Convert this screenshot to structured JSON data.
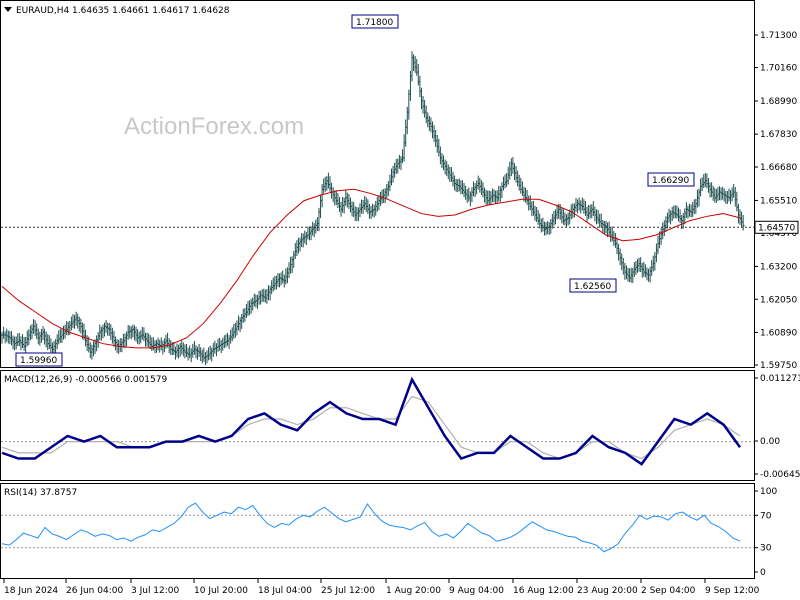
{
  "header": {
    "symbol_info": "EURAUD,H4  1.64635 1.64661 1.64617 1.64628",
    "dropdown_icon": "triangle-down-icon"
  },
  "watermark": "ActionForex.com",
  "chart_data": [
    {
      "type": "ohlc",
      "name": "price",
      "ylim": [
        1.5975,
        1.7198
      ],
      "y_ticks": [
        "1.71300",
        "1.70160",
        "1.68990",
        "1.67830",
        "1.66680",
        "1.65510",
        "1.64370",
        "1.63200",
        "1.62050",
        "1.60890",
        "1.59750"
      ],
      "current_price": "1.64570",
      "annotations": [
        {
          "text": "1.71800",
          "value": 1.718
        },
        {
          "text": "1.66290",
          "value": 1.6629
        },
        {
          "text": "1.62560",
          "value": 1.6256
        },
        {
          "text": "1.59960",
          "value": 1.5996
        }
      ],
      "series_close": [
        1.608,
        1.607,
        1.605,
        1.606,
        1.604,
        1.608,
        1.611,
        1.607,
        1.609,
        1.605,
        1.603,
        1.606,
        1.608,
        1.61,
        1.612,
        1.614,
        1.611,
        1.606,
        1.602,
        1.605,
        1.609,
        1.611,
        1.61,
        1.606,
        1.604,
        1.606,
        1.609,
        1.61,
        1.607,
        1.608,
        1.606,
        1.604,
        1.605,
        1.604,
        1.606,
        1.603,
        1.602,
        1.604,
        1.602,
        1.601,
        1.603,
        1.602,
        1.6,
        1.601,
        1.603,
        1.604,
        1.605,
        1.606,
        1.608,
        1.611,
        1.614,
        1.616,
        1.619,
        1.62,
        1.622,
        1.621,
        1.624,
        1.626,
        1.628,
        1.627,
        1.631,
        1.636,
        1.64,
        1.642,
        1.643,
        1.645,
        1.647,
        1.659,
        1.662,
        1.658,
        1.655,
        1.652,
        1.656,
        1.653,
        1.65,
        1.652,
        1.654,
        1.651,
        1.652,
        1.655,
        1.657,
        1.66,
        1.665,
        1.668,
        1.67,
        1.686,
        1.705,
        1.7,
        1.69,
        1.684,
        1.681,
        1.676,
        1.67,
        1.667,
        1.664,
        1.661,
        1.66,
        1.658,
        1.656,
        1.659,
        1.661,
        1.658,
        1.655,
        1.657,
        1.656,
        1.66,
        1.662,
        1.668,
        1.663,
        1.659,
        1.656,
        1.653,
        1.65,
        1.647,
        1.645,
        1.646,
        1.649,
        1.652,
        1.648,
        1.649,
        1.652,
        1.654,
        1.653,
        1.65,
        1.652,
        1.649,
        1.647,
        1.646,
        1.643,
        1.64,
        1.635,
        1.63,
        1.628,
        1.631,
        1.633,
        1.63,
        1.629,
        1.633,
        1.64,
        1.645,
        1.649,
        1.651,
        1.65,
        1.648,
        1.652,
        1.651,
        1.654,
        1.66,
        1.662,
        1.659,
        1.656,
        1.658,
        1.657,
        1.656,
        1.658,
        1.65,
        1.6463
      ],
      "series_ma": [
        1.625,
        1.62,
        1.616,
        1.612,
        1.609,
        1.607,
        1.605,
        1.604,
        1.6035,
        1.6035,
        1.6045,
        1.607,
        1.612,
        1.619,
        1.627,
        1.636,
        1.644,
        1.65,
        1.655,
        1.657,
        1.6585,
        1.659,
        1.6575,
        1.6555,
        1.653,
        1.6505,
        1.6495,
        1.65,
        1.652,
        1.6535,
        1.6545,
        1.6555,
        1.6555,
        1.6535,
        1.651,
        1.647,
        1.643,
        1.641,
        1.6415,
        1.643,
        1.6455,
        1.648,
        1.6495,
        1.6505,
        1.649
      ]
    },
    {
      "type": "line",
      "name": "MACD",
      "header": "MACD(12,26,9) -0.000566 0.001579",
      "y_ticks": [
        "0.011271",
        "0.00",
        "-0.006453"
      ],
      "ylim": [
        -0.006453,
        0.011271
      ],
      "series_main": [
        -0.002,
        -0.003,
        -0.003,
        -0.001,
        0.001,
        0.0,
        0.001,
        -0.001,
        -0.001,
        -0.001,
        0.0,
        0.0,
        0.001,
        0.0,
        0.001,
        0.004,
        0.005,
        0.003,
        0.002,
        0.005,
        0.007,
        0.005,
        0.004,
        0.004,
        0.003,
        0.011,
        0.006,
        0.001,
        -0.003,
        -0.002,
        -0.002,
        0.001,
        -0.001,
        -0.003,
        -0.003,
        -0.002,
        0.001,
        -0.001,
        -0.002,
        -0.004,
        0.0,
        0.004,
        0.003,
        0.005,
        0.003,
        -0.001
      ],
      "series_signal": [
        -0.001,
        -0.002,
        -0.002,
        -0.002,
        0.0,
        0.0,
        0.0,
        0.0,
        -0.001,
        -0.001,
        0.0,
        0.0,
        0.0,
        0.0,
        0.001,
        0.003,
        0.004,
        0.004,
        0.003,
        0.004,
        0.006,
        0.006,
        0.005,
        0.004,
        0.004,
        0.008,
        0.007,
        0.003,
        -0.001,
        -0.002,
        -0.002,
        0.0,
        0.0,
        -0.002,
        -0.003,
        -0.002,
        0.0,
        0.0,
        -0.002,
        -0.003,
        -0.001,
        0.002,
        0.003,
        0.004,
        0.003,
        0.001
      ]
    },
    {
      "type": "line",
      "name": "RSI",
      "header": "RSI(14) 37.8757",
      "y_ticks": [
        "100",
        "70",
        "30",
        "0"
      ],
      "levels": [
        70,
        30
      ],
      "ylim": [
        0,
        100
      ],
      "series": [
        35,
        33,
        40,
        48,
        45,
        42,
        55,
        47,
        44,
        40,
        46,
        52,
        49,
        44,
        47,
        45,
        40,
        42,
        38,
        43,
        46,
        52,
        50,
        55,
        60,
        68,
        80,
        85,
        74,
        66,
        70,
        74,
        72,
        80,
        77,
        82,
        70,
        60,
        55,
        60,
        58,
        65,
        70,
        68,
        75,
        80,
        73,
        66,
        62,
        65,
        68,
        84,
        72,
        63,
        58,
        56,
        55,
        52,
        57,
        61,
        50,
        44,
        47,
        42,
        50,
        60,
        54,
        48,
        45,
        38,
        40,
        43,
        48,
        55,
        62,
        57,
        52,
        50,
        47,
        44,
        43,
        38,
        36,
        33,
        25,
        29,
        35,
        48,
        58,
        70,
        65,
        69,
        68,
        64,
        72,
        74,
        68,
        64,
        70,
        60,
        56,
        50,
        42,
        38
      ]
    }
  ],
  "x_labels": [
    "18 Jun 2024",
    "26 Jun 04:00",
    "3 Jul 12:00",
    "10 Jul 20:00",
    "18 Jul 04:00",
    "25 Jul 12:00",
    "1 Aug 20:00",
    "9 Aug 04:00",
    "16 Aug 12:00",
    "23 Aug 20:00",
    "2 Sep 04:00",
    "9 Sep 12:00"
  ],
  "colors": {
    "bars": "#1f4f4f",
    "ma": "#cc0000",
    "macd_main": "#00008b",
    "macd_signal": "#b0b0b0",
    "rsi": "#1e90ff",
    "grid": "#000000",
    "current_line": "#333333"
  }
}
